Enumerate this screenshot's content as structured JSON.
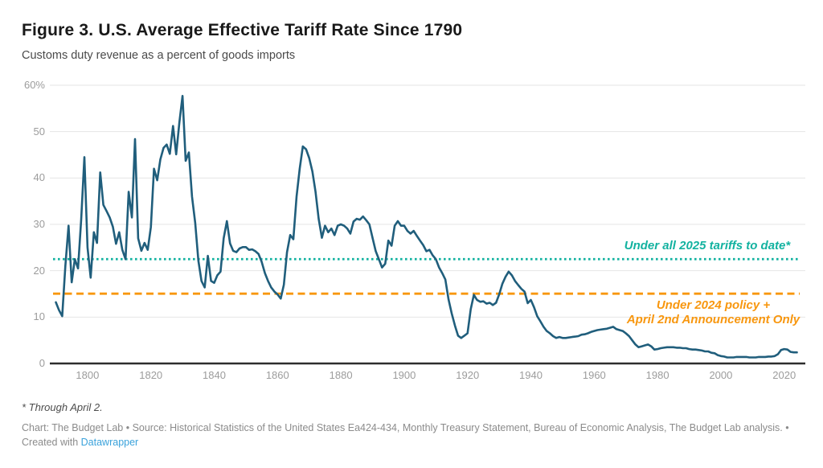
{
  "header": {
    "title": "Figure 3. U.S. Average Effective Tariff Rate Since 1790",
    "subtitle": "Customs duty revenue as a percent of goods imports"
  },
  "footnote": "* Through April 2.",
  "attribution": {
    "line1": "Chart: The Budget Lab • Source: Historical Statistics of the United States Ea424-434, Monthly Treasury Statement, Bureau of Economic Analysis, The Budget Lab analysis. •",
    "created_prefix": "Created with ",
    "link_label": "Datawrapper",
    "link_color": "#3aa2db"
  },
  "chart_data": {
    "type": "line",
    "title": "Figure 3. U.S. Average Effective Tariff Rate Since 1790",
    "subtitle": "Customs duty revenue as a percent of goods imports",
    "xlabel": "",
    "ylabel": "Customs duty revenue as a percent of goods imports",
    "ylim": [
      0,
      60
    ],
    "x_range": [
      1790,
      2024
    ],
    "grid": "horizontal",
    "yticks": [
      {
        "value": 60,
        "label": "60%"
      },
      {
        "value": 50,
        "label": "50"
      },
      {
        "value": 40,
        "label": "40"
      },
      {
        "value": 30,
        "label": "30"
      },
      {
        "value": 20,
        "label": "20"
      },
      {
        "value": 10,
        "label": "10"
      },
      {
        "value": 0,
        "label": "0"
      }
    ],
    "xticks": [
      1800,
      1820,
      1840,
      1860,
      1880,
      1900,
      1920,
      1940,
      1960,
      1980,
      2000,
      2020
    ],
    "reference_lines": [
      {
        "label": "Under all 2025 tariffs to date*",
        "label_lines": [
          "Under all 2025 tariffs to date*"
        ],
        "value": 22.5,
        "color": "#13b2a0",
        "style": "dotted"
      },
      {
        "label": "Under 2024 policy + April 2nd Announcement Only",
        "label_lines": [
          "Under 2024 policy +",
          "April 2nd Announcement Only"
        ],
        "value": 15.05,
        "color": "#f8970f",
        "style": "dashed"
      }
    ],
    "series": [
      {
        "name": "U.S. average effective tariff rate",
        "color": "#205e7c",
        "points": [
          [
            1790,
            13.2
          ],
          [
            1791,
            11.5
          ],
          [
            1792,
            10.2
          ],
          [
            1793,
            21.0
          ],
          [
            1794,
            29.7
          ],
          [
            1795,
            17.5
          ],
          [
            1796,
            22.5
          ],
          [
            1797,
            20.5
          ],
          [
            1798,
            31.0
          ],
          [
            1799,
            44.5
          ],
          [
            1800,
            25.0
          ],
          [
            1801,
            18.5
          ],
          [
            1802,
            28.3
          ],
          [
            1803,
            26.0
          ],
          [
            1804,
            41.2
          ],
          [
            1805,
            34.2
          ],
          [
            1806,
            32.9
          ],
          [
            1807,
            31.5
          ],
          [
            1808,
            29.5
          ],
          [
            1809,
            25.8
          ],
          [
            1810,
            28.3
          ],
          [
            1811,
            24.5
          ],
          [
            1812,
            22.5
          ],
          [
            1813,
            37.0
          ],
          [
            1814,
            31.5
          ],
          [
            1815,
            48.4
          ],
          [
            1816,
            27.0
          ],
          [
            1817,
            24.3
          ],
          [
            1818,
            26.0
          ],
          [
            1819,
            24.5
          ],
          [
            1820,
            29.4
          ],
          [
            1821,
            42.0
          ],
          [
            1822,
            39.5
          ],
          [
            1823,
            44.0
          ],
          [
            1824,
            46.5
          ],
          [
            1825,
            47.2
          ],
          [
            1826,
            45.2
          ],
          [
            1827,
            51.2
          ],
          [
            1828,
            45.1
          ],
          [
            1829,
            52.0
          ],
          [
            1830,
            57.7
          ],
          [
            1831,
            43.7
          ],
          [
            1832,
            45.5
          ],
          [
            1833,
            36.0
          ],
          [
            1834,
            30.3
          ],
          [
            1835,
            22.2
          ],
          [
            1836,
            17.8
          ],
          [
            1837,
            16.4
          ],
          [
            1838,
            23.2
          ],
          [
            1839,
            17.8
          ],
          [
            1840,
            17.4
          ],
          [
            1841,
            19.0
          ],
          [
            1842,
            19.8
          ],
          [
            1843,
            27.0
          ],
          [
            1844,
            30.7
          ],
          [
            1845,
            25.9
          ],
          [
            1846,
            24.3
          ],
          [
            1847,
            24.0
          ],
          [
            1848,
            24.8
          ],
          [
            1849,
            25.1
          ],
          [
            1850,
            25.1
          ],
          [
            1851,
            24.5
          ],
          [
            1852,
            24.6
          ],
          [
            1853,
            24.2
          ],
          [
            1854,
            23.6
          ],
          [
            1855,
            21.9
          ],
          [
            1856,
            19.5
          ],
          [
            1857,
            17.8
          ],
          [
            1858,
            16.4
          ],
          [
            1859,
            15.5
          ],
          [
            1860,
            14.9
          ],
          [
            1861,
            14.0
          ],
          [
            1862,
            17.0
          ],
          [
            1863,
            24.0
          ],
          [
            1864,
            27.7
          ],
          [
            1865,
            26.8
          ],
          [
            1866,
            36.0
          ],
          [
            1867,
            42.0
          ],
          [
            1868,
            46.8
          ],
          [
            1869,
            46.2
          ],
          [
            1870,
            44.3
          ],
          [
            1871,
            41.4
          ],
          [
            1872,
            37.0
          ],
          [
            1873,
            31.2
          ],
          [
            1874,
            27.1
          ],
          [
            1875,
            29.7
          ],
          [
            1876,
            28.3
          ],
          [
            1877,
            29.1
          ],
          [
            1878,
            27.7
          ],
          [
            1879,
            29.7
          ],
          [
            1880,
            30.0
          ],
          [
            1881,
            29.7
          ],
          [
            1882,
            29.1
          ],
          [
            1883,
            28.0
          ],
          [
            1884,
            30.6
          ],
          [
            1885,
            31.2
          ],
          [
            1886,
            31.0
          ],
          [
            1887,
            31.7
          ],
          [
            1888,
            30.9
          ],
          [
            1889,
            30.0
          ],
          [
            1890,
            27.1
          ],
          [
            1891,
            24.2
          ],
          [
            1892,
            22.5
          ],
          [
            1893,
            20.7
          ],
          [
            1894,
            21.5
          ],
          [
            1895,
            26.5
          ],
          [
            1896,
            25.4
          ],
          [
            1897,
            29.7
          ],
          [
            1898,
            30.7
          ],
          [
            1899,
            29.7
          ],
          [
            1900,
            29.7
          ],
          [
            1901,
            28.6
          ],
          [
            1902,
            28.0
          ],
          [
            1903,
            28.6
          ],
          [
            1904,
            27.5
          ],
          [
            1905,
            26.5
          ],
          [
            1906,
            25.5
          ],
          [
            1907,
            24.2
          ],
          [
            1908,
            24.5
          ],
          [
            1909,
            23.3
          ],
          [
            1910,
            22.5
          ],
          [
            1911,
            20.7
          ],
          [
            1912,
            19.5
          ],
          [
            1913,
            18.1
          ],
          [
            1914,
            13.8
          ],
          [
            1915,
            10.8
          ],
          [
            1916,
            8.2
          ],
          [
            1917,
            6.0
          ],
          [
            1918,
            5.5
          ],
          [
            1919,
            6.0
          ],
          [
            1920,
            6.5
          ],
          [
            1921,
            11.7
          ],
          [
            1922,
            14.8
          ],
          [
            1923,
            13.7
          ],
          [
            1924,
            13.3
          ],
          [
            1925,
            13.4
          ],
          [
            1926,
            12.9
          ],
          [
            1927,
            13.1
          ],
          [
            1928,
            12.6
          ],
          [
            1929,
            13.1
          ],
          [
            1930,
            14.9
          ],
          [
            1931,
            17.2
          ],
          [
            1932,
            18.7
          ],
          [
            1933,
            19.8
          ],
          [
            1934,
            19.0
          ],
          [
            1935,
            17.8
          ],
          [
            1936,
            16.9
          ],
          [
            1937,
            16.1
          ],
          [
            1938,
            15.5
          ],
          [
            1939,
            13.0
          ],
          [
            1940,
            13.7
          ],
          [
            1941,
            12.1
          ],
          [
            1942,
            10.2
          ],
          [
            1943,
            9.1
          ],
          [
            1944,
            7.9
          ],
          [
            1945,
            7.0
          ],
          [
            1946,
            6.5
          ],
          [
            1947,
            5.9
          ],
          [
            1948,
            5.5
          ],
          [
            1949,
            5.7
          ],
          [
            1950,
            5.5
          ],
          [
            1951,
            5.5
          ],
          [
            1952,
            5.6
          ],
          [
            1953,
            5.7
          ],
          [
            1954,
            5.8
          ],
          [
            1955,
            5.9
          ],
          [
            1956,
            6.2
          ],
          [
            1957,
            6.3
          ],
          [
            1958,
            6.5
          ],
          [
            1959,
            6.8
          ],
          [
            1960,
            7.0
          ],
          [
            1961,
            7.2
          ],
          [
            1962,
            7.3
          ],
          [
            1963,
            7.4
          ],
          [
            1964,
            7.5
          ],
          [
            1965,
            7.7
          ],
          [
            1966,
            7.9
          ],
          [
            1967,
            7.4
          ],
          [
            1968,
            7.2
          ],
          [
            1969,
            7.0
          ],
          [
            1970,
            6.5
          ],
          [
            1971,
            5.9
          ],
          [
            1972,
            5.0
          ],
          [
            1973,
            4.1
          ],
          [
            1974,
            3.5
          ],
          [
            1975,
            3.7
          ],
          [
            1976,
            3.9
          ],
          [
            1977,
            4.1
          ],
          [
            1978,
            3.7
          ],
          [
            1979,
            3.0
          ],
          [
            1980,
            3.1
          ],
          [
            1981,
            3.3
          ],
          [
            1982,
            3.4
          ],
          [
            1983,
            3.5
          ],
          [
            1984,
            3.5
          ],
          [
            1985,
            3.5
          ],
          [
            1986,
            3.4
          ],
          [
            1987,
            3.4
          ],
          [
            1988,
            3.3
          ],
          [
            1989,
            3.3
          ],
          [
            1990,
            3.1
          ],
          [
            1991,
            3.0
          ],
          [
            1992,
            3.0
          ],
          [
            1993,
            2.9
          ],
          [
            1994,
            2.8
          ],
          [
            1995,
            2.6
          ],
          [
            1996,
            2.6
          ],
          [
            1997,
            2.3
          ],
          [
            1998,
            2.2
          ],
          [
            1999,
            1.8
          ],
          [
            2000,
            1.6
          ],
          [
            2001,
            1.5
          ],
          [
            2002,
            1.3
          ],
          [
            2003,
            1.3
          ],
          [
            2004,
            1.3
          ],
          [
            2005,
            1.4
          ],
          [
            2006,
            1.4
          ],
          [
            2007,
            1.4
          ],
          [
            2008,
            1.4
          ],
          [
            2009,
            1.3
          ],
          [
            2010,
            1.3
          ],
          [
            2011,
            1.3
          ],
          [
            2012,
            1.4
          ],
          [
            2013,
            1.4
          ],
          [
            2014,
            1.4
          ],
          [
            2015,
            1.5
          ],
          [
            2016,
            1.5
          ],
          [
            2017,
            1.6
          ],
          [
            2018,
            2.0
          ],
          [
            2019,
            2.9
          ],
          [
            2020,
            3.1
          ],
          [
            2021,
            3.0
          ],
          [
            2022,
            2.5
          ],
          [
            2023,
            2.4
          ],
          [
            2024,
            2.4
          ]
        ]
      }
    ],
    "legend_position": "direct-labels-right"
  }
}
